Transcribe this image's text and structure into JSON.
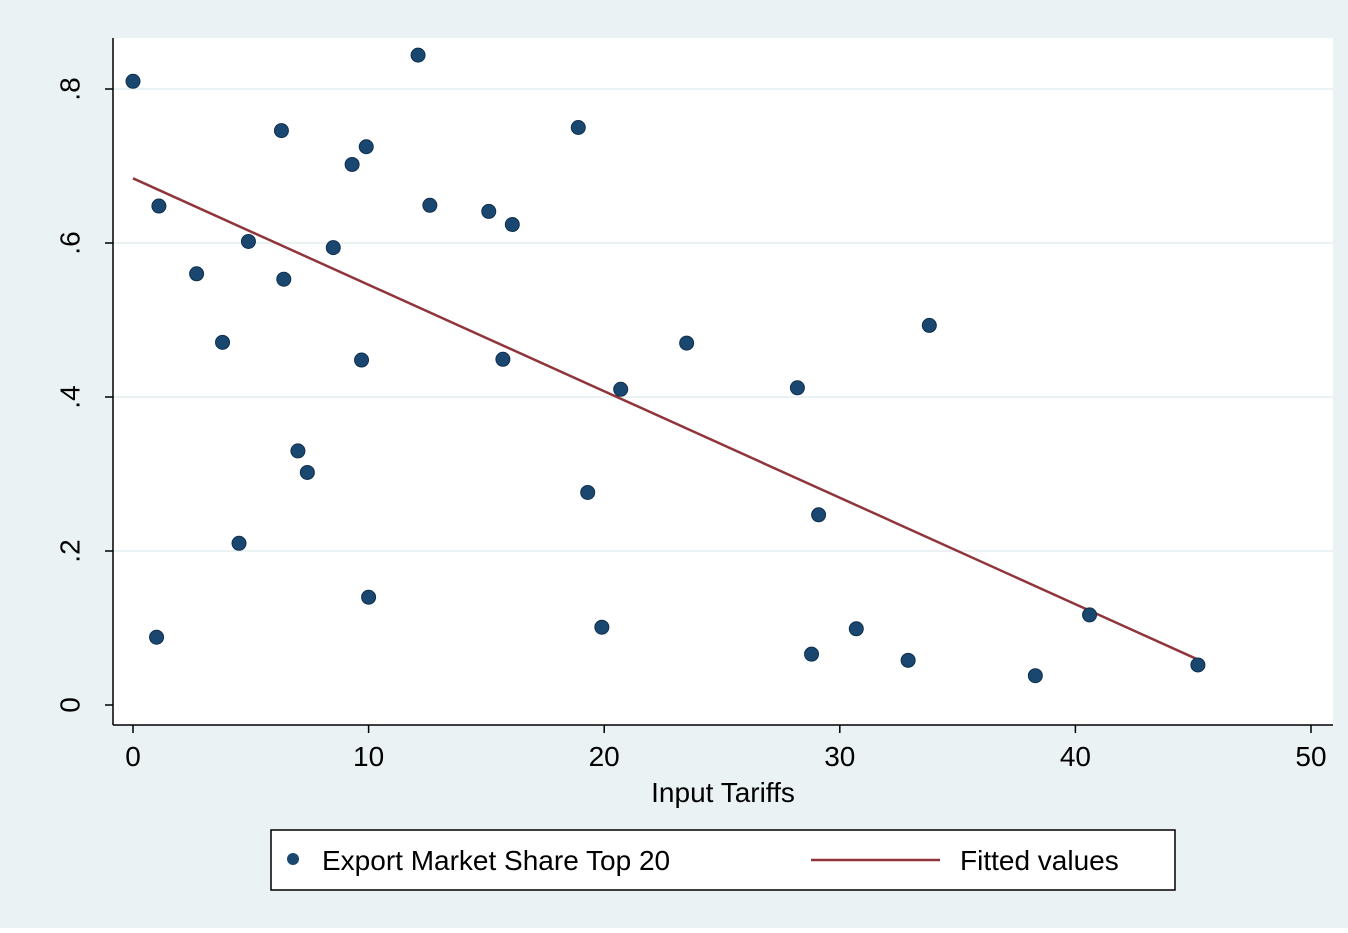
{
  "chart_data": {
    "type": "scatter",
    "title": "",
    "xlabel": "Input Tariffs",
    "ylabel": "",
    "xlim": [
      0,
      50
    ],
    "ylim": [
      0,
      0.8
    ],
    "x_ticks": [
      0,
      10,
      20,
      30,
      40,
      50
    ],
    "x_tick_labels": [
      "0",
      "10",
      "20",
      "30",
      "40",
      "50"
    ],
    "y_ticks": [
      0,
      0.2,
      0.4,
      0.6,
      0.8
    ],
    "y_tick_labels": [
      "0",
      ".2",
      ".4",
      ".6",
      ".8"
    ],
    "grid": "horizontal",
    "legend_position": "bottom",
    "series": [
      {
        "name": "Export Market Share Top 20",
        "kind": "scatter",
        "color": "#1a476f",
        "points": [
          {
            "x": 0.0,
            "y": 0.81
          },
          {
            "x": 1.0,
            "y": 0.088
          },
          {
            "x": 1.1,
            "y": 0.648
          },
          {
            "x": 2.7,
            "y": 0.56
          },
          {
            "x": 3.8,
            "y": 0.471
          },
          {
            "x": 4.5,
            "y": 0.21
          },
          {
            "x": 4.9,
            "y": 0.602
          },
          {
            "x": 6.3,
            "y": 0.746
          },
          {
            "x": 6.4,
            "y": 0.553
          },
          {
            "x": 7.0,
            "y": 0.33
          },
          {
            "x": 7.4,
            "y": 0.302
          },
          {
            "x": 8.5,
            "y": 0.594
          },
          {
            "x": 9.3,
            "y": 0.702
          },
          {
            "x": 9.7,
            "y": 0.448
          },
          {
            "x": 9.9,
            "y": 0.725
          },
          {
            "x": 10.0,
            "y": 0.14
          },
          {
            "x": 12.1,
            "y": 0.844
          },
          {
            "x": 12.6,
            "y": 0.649
          },
          {
            "x": 15.1,
            "y": 0.641
          },
          {
            "x": 15.7,
            "y": 0.449
          },
          {
            "x": 16.1,
            "y": 0.624
          },
          {
            "x": 18.9,
            "y": 0.75
          },
          {
            "x": 19.3,
            "y": 0.276
          },
          {
            "x": 19.9,
            "y": 0.101
          },
          {
            "x": 20.7,
            "y": 0.41
          },
          {
            "x": 23.5,
            "y": 0.47
          },
          {
            "x": 28.2,
            "y": 0.412
          },
          {
            "x": 28.8,
            "y": 0.066
          },
          {
            "x": 29.1,
            "y": 0.247
          },
          {
            "x": 30.7,
            "y": 0.099
          },
          {
            "x": 32.9,
            "y": 0.058
          },
          {
            "x": 33.8,
            "y": 0.493
          },
          {
            "x": 38.3,
            "y": 0.038
          },
          {
            "x": 40.6,
            "y": 0.117
          },
          {
            "x": 45.2,
            "y": 0.052
          }
        ]
      },
      {
        "name": "Fitted values",
        "kind": "line",
        "color": "#90353b",
        "points": [
          {
            "x": 0.0,
            "y": 0.684
          },
          {
            "x": 45.2,
            "y": 0.059
          }
        ]
      }
    ]
  },
  "colors": {
    "background": "#eaf2f3",
    "plot_area": "#ffffff",
    "gridline": "#eaf2f3",
    "axis": "#000000"
  }
}
